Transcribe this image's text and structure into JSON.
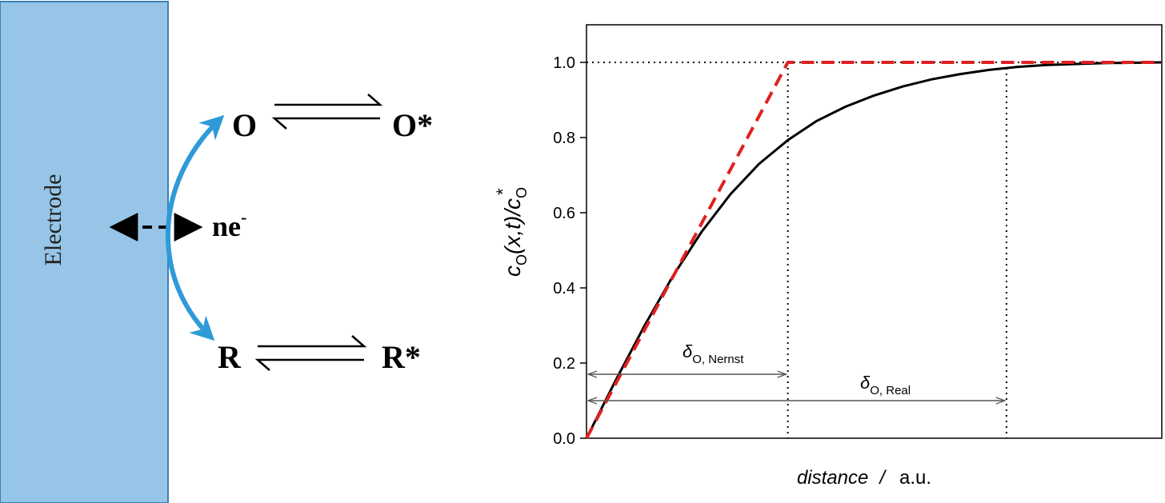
{
  "scheme": {
    "electrode_label": "Electrode",
    "electrons": "ne",
    "electrons_charge": "-",
    "species": {
      "O": "O",
      "O_star": "O*",
      "R": "R",
      "R_star": "R*"
    },
    "colors": {
      "electrode_fill": "#96c5e8",
      "electrode_stroke": "#3a80b8",
      "transfer_arrow": "#2f9ad8"
    }
  },
  "chart_data": {
    "type": "line",
    "xlabel_italic": "distance",
    "xlabel_sep": "/",
    "xlabel_unit": "a.u.",
    "ylabel": {
      "c": "c",
      "sub_O": "O",
      "args": "(x,t)/",
      "c2": "c",
      "sub_O2": "O",
      "sup": "*"
    },
    "xlim": [
      0,
      1
    ],
    "ylim": [
      0,
      1.1
    ],
    "y_ticks": [
      "0.0",
      "0.2",
      "0.4",
      "0.6",
      "0.8",
      "1.0"
    ],
    "y_tick_values": [
      0,
      0.2,
      0.4,
      0.6,
      0.8,
      1.0
    ],
    "delta_nernst": 0.35,
    "delta_real": 0.73,
    "series": [
      {
        "style": "solid",
        "color": "#000000",
        "x": [
          0,
          0.05,
          0.1,
          0.15,
          0.2,
          0.25,
          0.3,
          0.35,
          0.4,
          0.45,
          0.5,
          0.55,
          0.6,
          0.65,
          0.7,
          0.75,
          0.8,
          0.9,
          1.0
        ],
        "y": [
          0,
          0.152,
          0.297,
          0.431,
          0.549,
          0.649,
          0.73,
          0.793,
          0.844,
          0.882,
          0.912,
          0.936,
          0.955,
          0.969,
          0.98,
          0.988,
          0.993,
          0.998,
          1.0
        ]
      },
      {
        "style": "dashed",
        "color": "#e02020",
        "x": [
          0,
          0.35,
          1.0
        ],
        "y": [
          0,
          1.0,
          1.0
        ]
      }
    ],
    "annotations": {
      "nernst": {
        "delta": "δ",
        "sub": "O, Nernst"
      },
      "real": {
        "delta": "δ",
        "sub": "O, Real"
      }
    }
  }
}
